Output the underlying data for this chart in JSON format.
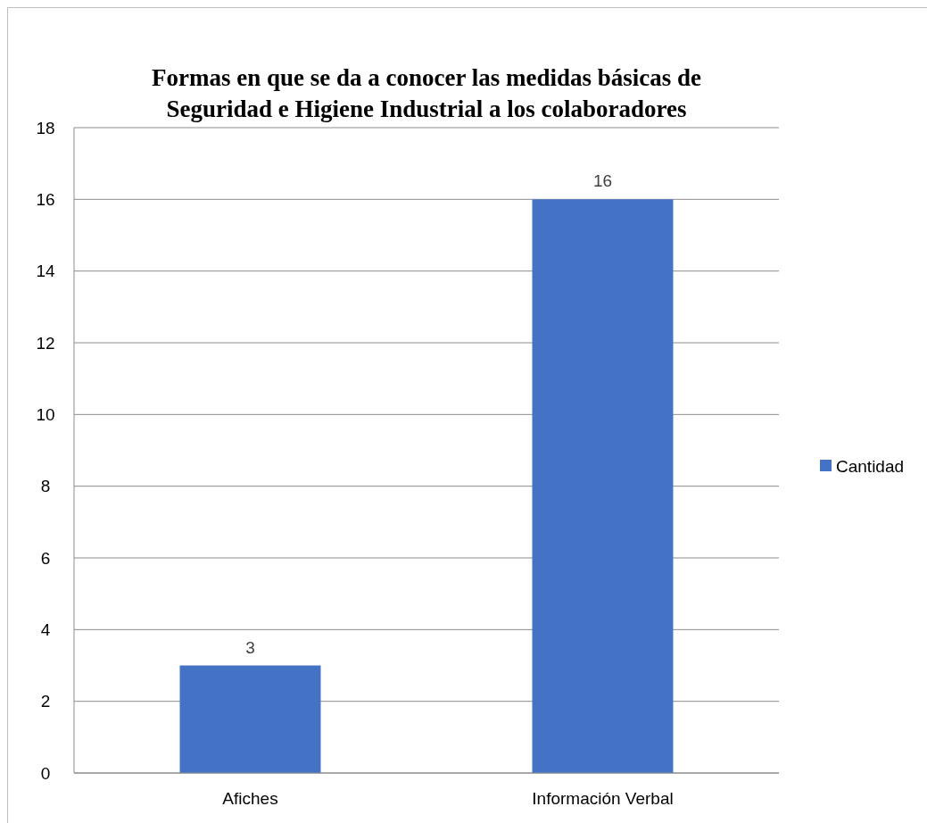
{
  "chart_data": {
    "type": "bar",
    "title": "Formas en que se da a conocer las medidas básicas de Seguridad e Higiene Industrial a los colaboradores",
    "categories": [
      "Afiches",
      "Información Verbal"
    ],
    "series": [
      {
        "name": "Cantidad",
        "color": "#4472c4",
        "values": [
          3,
          16
        ]
      }
    ],
    "ylim": [
      0,
      18
    ],
    "yticks": [
      0,
      2,
      4,
      6,
      8,
      10,
      12,
      14,
      16,
      18
    ],
    "grid": "y",
    "legend": "right",
    "data_labels": true
  }
}
